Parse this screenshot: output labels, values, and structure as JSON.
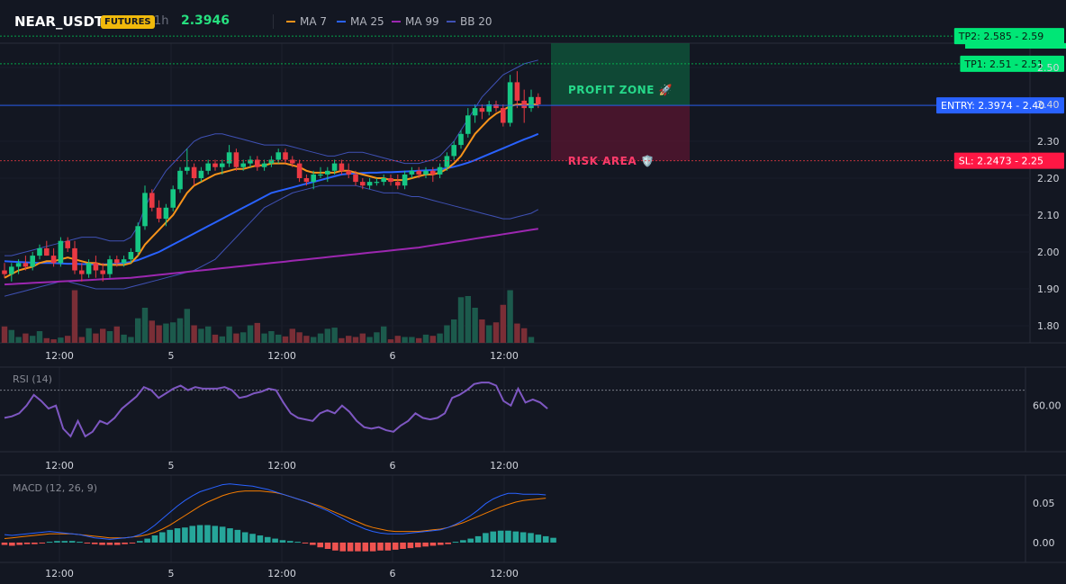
{
  "header": {
    "symbol": "NEAR_USDT",
    "badge": "FUTURES",
    "interval": "1h",
    "price": "2.3946",
    "legend": [
      {
        "label": "MA 7",
        "color": "#f7931a"
      },
      {
        "label": "MA 25",
        "color": "#2962ff"
      },
      {
        "label": "MA 99",
        "color": "#9c27b0"
      },
      {
        "label": "BB 20",
        "color": "#3f51b5"
      }
    ]
  },
  "colors": {
    "up": "#16c784",
    "down": "#ea3943",
    "vol_up": "#1c5a4c",
    "vol_down": "#7a2e36",
    "rsi": "#7e57c2",
    "macd": "#2962ff",
    "signal": "#f57c00",
    "hist_up": "#26a69a",
    "hist_down": "#ef5350"
  },
  "chart_data": [
    {
      "type": "candlestick",
      "title": "NEAR_USDT 1h",
      "x_ticks": [
        "12:00",
        "5",
        "12:00",
        "6",
        "12:00"
      ],
      "y_ticks": [
        "1.80",
        "1.90",
        "2.00",
        "2.10",
        "2.20",
        "2.30",
        "2.40",
        "2.50"
      ],
      "ylim": [
        1.75,
        2.62
      ],
      "candles": [
        [
          1.95,
          1.97,
          1.93,
          1.94
        ],
        [
          1.94,
          1.97,
          1.92,
          1.96
        ],
        [
          1.96,
          1.98,
          1.94,
          1.97
        ],
        [
          1.97,
          1.99,
          1.95,
          1.96
        ],
        [
          1.96,
          2.0,
          1.95,
          1.99
        ],
        [
          1.99,
          2.02,
          1.98,
          2.01
        ],
        [
          2.01,
          2.03,
          1.99,
          1.99
        ],
        [
          1.99,
          2.01,
          1.96,
          1.97
        ],
        [
          1.97,
          2.04,
          1.96,
          2.03
        ],
        [
          2.03,
          2.04,
          2.0,
          2.01
        ],
        [
          2.01,
          2.03,
          1.94,
          1.95
        ],
        [
          1.95,
          1.97,
          1.92,
          1.94
        ],
        [
          1.94,
          1.98,
          1.93,
          1.97
        ],
        [
          1.97,
          1.99,
          1.93,
          1.95
        ],
        [
          1.95,
          1.97,
          1.92,
          1.94
        ],
        [
          1.94,
          1.99,
          1.93,
          1.98
        ],
        [
          1.98,
          1.99,
          1.96,
          1.97
        ],
        [
          1.97,
          1.99,
          1.96,
          1.98
        ],
        [
          1.98,
          2.01,
          1.97,
          2.0
        ],
        [
          2.0,
          2.08,
          1.99,
          2.07
        ],
        [
          2.07,
          2.18,
          2.06,
          2.16
        ],
        [
          2.16,
          2.17,
          2.11,
          2.12
        ],
        [
          2.12,
          2.14,
          2.08,
          2.09
        ],
        [
          2.09,
          2.13,
          2.07,
          2.12
        ],
        [
          2.12,
          2.18,
          2.11,
          2.17
        ],
        [
          2.17,
          2.23,
          2.16,
          2.22
        ],
        [
          2.22,
          2.28,
          2.21,
          2.23
        ],
        [
          2.23,
          2.24,
          2.18,
          2.2
        ],
        [
          2.2,
          2.23,
          2.19,
          2.22
        ],
        [
          2.22,
          2.25,
          2.21,
          2.24
        ],
        [
          2.24,
          2.25,
          2.22,
          2.23
        ],
        [
          2.23,
          2.25,
          2.21,
          2.24
        ],
        [
          2.24,
          2.29,
          2.23,
          2.27
        ],
        [
          2.27,
          2.28,
          2.22,
          2.23
        ],
        [
          2.23,
          2.25,
          2.22,
          2.24
        ],
        [
          2.24,
          2.26,
          2.23,
          2.25
        ],
        [
          2.25,
          2.26,
          2.22,
          2.23
        ],
        [
          2.23,
          2.25,
          2.22,
          2.24
        ],
        [
          2.24,
          2.26,
          2.23,
          2.25
        ],
        [
          2.25,
          2.28,
          2.24,
          2.27
        ],
        [
          2.27,
          2.28,
          2.24,
          2.25
        ],
        [
          2.25,
          2.26,
          2.23,
          2.24
        ],
        [
          2.24,
          2.25,
          2.19,
          2.2
        ],
        [
          2.2,
          2.21,
          2.18,
          2.19
        ],
        [
          2.19,
          2.22,
          2.17,
          2.21
        ],
        [
          2.21,
          2.23,
          2.2,
          2.21
        ],
        [
          2.21,
          2.23,
          2.19,
          2.22
        ],
        [
          2.22,
          2.25,
          2.21,
          2.24
        ],
        [
          2.24,
          2.25,
          2.21,
          2.22
        ],
        [
          2.22,
          2.24,
          2.2,
          2.21
        ],
        [
          2.21,
          2.22,
          2.18,
          2.19
        ],
        [
          2.19,
          2.2,
          2.17,
          2.18
        ],
        [
          2.18,
          2.2,
          2.17,
          2.19
        ],
        [
          2.19,
          2.2,
          2.18,
          2.19
        ],
        [
          2.19,
          2.21,
          2.18,
          2.2
        ],
        [
          2.2,
          2.21,
          2.18,
          2.19
        ],
        [
          2.19,
          2.21,
          2.17,
          2.18
        ],
        [
          2.18,
          2.22,
          2.17,
          2.21
        ],
        [
          2.21,
          2.23,
          2.2,
          2.22
        ],
        [
          2.22,
          2.23,
          2.2,
          2.21
        ],
        [
          2.21,
          2.23,
          2.2,
          2.22
        ],
        [
          2.22,
          2.23,
          2.19,
          2.21
        ],
        [
          2.21,
          2.24,
          2.2,
          2.23
        ],
        [
          2.23,
          2.27,
          2.22,
          2.26
        ],
        [
          2.26,
          2.3,
          2.25,
          2.29
        ],
        [
          2.29,
          2.33,
          2.28,
          2.32
        ],
        [
          2.32,
          2.39,
          2.31,
          2.37
        ],
        [
          2.37,
          2.4,
          2.35,
          2.39
        ],
        [
          2.39,
          2.4,
          2.36,
          2.38
        ],
        [
          2.38,
          2.41,
          2.37,
          2.4
        ],
        [
          2.4,
          2.41,
          2.38,
          2.39
        ],
        [
          2.39,
          2.4,
          2.34,
          2.35
        ],
        [
          2.35,
          2.48,
          2.34,
          2.46
        ],
        [
          2.46,
          2.49,
          2.39,
          2.41
        ],
        [
          2.41,
          2.44,
          2.35,
          2.39
        ],
        [
          2.39,
          2.44,
          2.38,
          2.42
        ],
        [
          2.42,
          2.43,
          2.39,
          2.4
        ]
      ],
      "volume": [
        28,
        22,
        10,
        16,
        12,
        20,
        8,
        6,
        9,
        12,
        90,
        10,
        25,
        16,
        24,
        20,
        28,
        14,
        10,
        42,
        60,
        38,
        30,
        33,
        35,
        42,
        58,
        30,
        24,
        28,
        14,
        11,
        28,
        16,
        18,
        30,
        34,
        16,
        20,
        14,
        11,
        24,
        18,
        12,
        10,
        16,
        24,
        26,
        8,
        12,
        10,
        16,
        10,
        18,
        28,
        6,
        12,
        10,
        10,
        8,
        14,
        12,
        16,
        30,
        40,
        78,
        80,
        60,
        40,
        30,
        35,
        65,
        90,
        33,
        25,
        10
      ],
      "ma7": [
        1.93,
        1.94,
        1.95,
        1.955,
        1.96,
        1.97,
        1.975,
        1.975,
        1.98,
        1.985,
        1.98,
        1.975,
        1.97,
        1.97,
        1.965,
        1.965,
        1.965,
        1.965,
        1.97,
        1.99,
        2.02,
        2.04,
        2.06,
        2.08,
        2.1,
        2.13,
        2.16,
        2.18,
        2.19,
        2.2,
        2.21,
        2.215,
        2.22,
        2.225,
        2.225,
        2.23,
        2.235,
        2.235,
        2.24,
        2.24,
        2.24,
        2.235,
        2.23,
        2.22,
        2.215,
        2.215,
        2.215,
        2.215,
        2.22,
        2.22,
        2.215,
        2.21,
        2.205,
        2.2,
        2.2,
        2.195,
        2.195,
        2.195,
        2.2,
        2.205,
        2.21,
        2.21,
        2.215,
        2.225,
        2.24,
        2.26,
        2.29,
        2.32,
        2.34,
        2.36,
        2.375,
        2.385,
        2.395,
        2.4,
        2.4,
        2.4,
        2.4
      ],
      "ma25": [
        1.975,
        1.974,
        1.973,
        1.972,
        1.971,
        1.97,
        1.97,
        1.97,
        1.969,
        1.968,
        1.968,
        1.967,
        1.967,
        1.966,
        1.966,
        1.967,
        1.968,
        1.97,
        1.973,
        1.978,
        1.985,
        1.993,
        2.0,
        2.01,
        2.02,
        2.03,
        2.04,
        2.05,
        2.06,
        2.07,
        2.08,
        2.09,
        2.1,
        2.11,
        2.12,
        2.13,
        2.14,
        2.15,
        2.16,
        2.165,
        2.17,
        2.175,
        2.18,
        2.185,
        2.19,
        2.195,
        2.2,
        2.205,
        2.21,
        2.212,
        2.213,
        2.214,
        2.215,
        2.215,
        2.216,
        2.216,
        2.217,
        2.218,
        2.219,
        2.22,
        2.221,
        2.222,
        2.224,
        2.227,
        2.231,
        2.236,
        2.242,
        2.249,
        2.257,
        2.265,
        2.273,
        2.281,
        2.289,
        2.297,
        2.305,
        2.312,
        2.32
      ],
      "ma99": [
        1.912,
        1.913,
        1.914,
        1.915,
        1.916,
        1.917,
        1.918,
        1.919,
        1.92,
        1.921,
        1.922,
        1.923,
        1.924,
        1.925,
        1.926,
        1.927,
        1.928,
        1.929,
        1.93,
        1.932,
        1.934,
        1.936,
        1.938,
        1.94,
        1.942,
        1.944,
        1.946,
        1.948,
        1.95,
        1.952,
        1.954,
        1.956,
        1.958,
        1.96,
        1.962,
        1.964,
        1.966,
        1.968,
        1.97,
        1.972,
        1.974,
        1.976,
        1.978,
        1.98,
        1.982,
        1.984,
        1.986,
        1.988,
        1.99,
        1.992,
        1.994,
        1.996,
        1.998,
        2.0,
        2.002,
        2.004,
        2.006,
        2.008,
        2.01,
        2.012,
        2.015,
        2.018,
        2.021,
        2.024,
        2.027,
        2.03,
        2.033,
        2.036,
        2.039,
        2.042,
        2.045,
        2.048,
        2.051,
        2.054,
        2.057,
        2.06,
        2.063
      ],
      "bb_upper": [
        1.99,
        1.99,
        1.995,
        2.0,
        2.005,
        2.01,
        2.015,
        2.02,
        2.025,
        2.03,
        2.035,
        2.04,
        2.04,
        2.04,
        2.035,
        2.03,
        2.03,
        2.03,
        2.04,
        2.07,
        2.12,
        2.16,
        2.19,
        2.22,
        2.24,
        2.26,
        2.28,
        2.3,
        2.31,
        2.315,
        2.32,
        2.32,
        2.315,
        2.31,
        2.305,
        2.3,
        2.295,
        2.29,
        2.29,
        2.29,
        2.29,
        2.285,
        2.28,
        2.275,
        2.27,
        2.265,
        2.26,
        2.26,
        2.265,
        2.27,
        2.27,
        2.27,
        2.265,
        2.26,
        2.255,
        2.25,
        2.245,
        2.24,
        2.24,
        2.24,
        2.245,
        2.25,
        2.26,
        2.28,
        2.3,
        2.33,
        2.36,
        2.39,
        2.42,
        2.44,
        2.46,
        2.48,
        2.49,
        2.5,
        2.51,
        2.515,
        2.52
      ],
      "bb_lower": [
        1.88,
        1.885,
        1.89,
        1.895,
        1.9,
        1.905,
        1.91,
        1.915,
        1.92,
        1.92,
        1.915,
        1.91,
        1.905,
        1.9,
        1.9,
        1.9,
        1.9,
        1.9,
        1.905,
        1.91,
        1.915,
        1.92,
        1.925,
        1.93,
        1.935,
        1.94,
        1.945,
        1.95,
        1.96,
        1.97,
        1.98,
        2.0,
        2.02,
        2.04,
        2.06,
        2.08,
        2.1,
        2.12,
        2.13,
        2.14,
        2.15,
        2.16,
        2.165,
        2.17,
        2.175,
        2.18,
        2.18,
        2.18,
        2.18,
        2.18,
        2.18,
        2.175,
        2.17,
        2.165,
        2.16,
        2.16,
        2.16,
        2.155,
        2.15,
        2.15,
        2.145,
        2.14,
        2.135,
        2.13,
        2.125,
        2.12,
        2.115,
        2.11,
        2.105,
        2.1,
        2.095,
        2.09,
        2.09,
        2.095,
        2.1,
        2.105,
        2.115
      ],
      "levels": [
        {
          "label": "TP2: 2.585 - 2.59",
          "value": 2.585,
          "color": "#00c853",
          "style": "dotted"
        },
        {
          "label": "TP1: 2.51 - 2.51",
          "value": 2.51,
          "color": "#00c853",
          "style": "dotted"
        },
        {
          "label": "ENTRY: 2.3974 - 2.40",
          "value": 2.3974,
          "color": "#2962ff",
          "style": "solid"
        },
        {
          "label": "SL: 2.2473 - 2.25",
          "value": 2.2473,
          "color": "#ea3943",
          "style": "dotted"
        }
      ],
      "zones": {
        "profit_label": "PROFIT ZONE 🚀",
        "risk_label": "RISK AREA 🛡️",
        "profit_top": 2.62,
        "entry": 2.3974,
        "sl": 2.2473
      }
    },
    {
      "type": "line",
      "title": "RSI (14)",
      "y_ticks": [
        "60.00"
      ],
      "ylim": [
        30,
        85
      ],
      "overbought": 70,
      "values": [
        52,
        53,
        55,
        60,
        67,
        63,
        58,
        60,
        45,
        40,
        50,
        40,
        43,
        50,
        48,
        52,
        58,
        62,
        66,
        72,
        70,
        65,
        68,
        71,
        73,
        70,
        72,
        71,
        71,
        71,
        72,
        70,
        65,
        66,
        68,
        69,
        71,
        70,
        62,
        55,
        52,
        51,
        50,
        55,
        57,
        55,
        60,
        56,
        50,
        46,
        45,
        46,
        44,
        43,
        47,
        50,
        55,
        52,
        51,
        52,
        55,
        65,
        67,
        70,
        74,
        75,
        75,
        73,
        63,
        60,
        71,
        62,
        64,
        62,
        58
      ]
    },
    {
      "type": "line",
      "title": "MACD (12, 26, 9)",
      "y_ticks": [
        "0.05",
        "0.00"
      ],
      "ylim": [
        -0.025,
        0.085
      ],
      "macd": [
        0.01,
        0.009,
        0.01,
        0.011,
        0.012,
        0.013,
        0.014,
        0.013,
        0.012,
        0.011,
        0.01,
        0.008,
        0.006,
        0.005,
        0.004,
        0.005,
        0.006,
        0.007,
        0.01,
        0.015,
        0.022,
        0.03,
        0.038,
        0.046,
        0.053,
        0.059,
        0.064,
        0.067,
        0.07,
        0.073,
        0.074,
        0.073,
        0.072,
        0.071,
        0.069,
        0.067,
        0.064,
        0.061,
        0.058,
        0.055,
        0.052,
        0.048,
        0.044,
        0.04,
        0.035,
        0.03,
        0.025,
        0.021,
        0.017,
        0.014,
        0.012,
        0.011,
        0.011,
        0.011,
        0.012,
        0.013,
        0.014,
        0.015,
        0.016,
        0.019,
        0.023,
        0.028,
        0.034,
        0.041,
        0.049,
        0.055,
        0.059,
        0.062,
        0.062,
        0.061,
        0.061,
        0.061,
        0.06
      ],
      "signal": [
        0.005,
        0.006,
        0.007,
        0.008,
        0.009,
        0.01,
        0.011,
        0.011,
        0.011,
        0.011,
        0.01,
        0.009,
        0.008,
        0.007,
        0.006,
        0.006,
        0.006,
        0.007,
        0.008,
        0.01,
        0.013,
        0.017,
        0.022,
        0.028,
        0.034,
        0.04,
        0.046,
        0.051,
        0.055,
        0.059,
        0.062,
        0.064,
        0.065,
        0.065,
        0.065,
        0.064,
        0.063,
        0.061,
        0.058,
        0.055,
        0.052,
        0.049,
        0.046,
        0.042,
        0.038,
        0.034,
        0.03,
        0.026,
        0.022,
        0.019,
        0.017,
        0.015,
        0.014,
        0.014,
        0.014,
        0.014,
        0.015,
        0.016,
        0.017,
        0.019,
        0.022,
        0.025,
        0.029,
        0.033,
        0.037,
        0.041,
        0.045,
        0.048,
        0.051,
        0.053,
        0.054,
        0.055,
        0.056
      ],
      "hist": [
        -0.003,
        -0.004,
        -0.003,
        -0.002,
        -0.002,
        -0.001,
        0.001,
        0.002,
        0.002,
        0.002,
        0.001,
        -0.001,
        -0.002,
        -0.003,
        -0.003,
        -0.003,
        -0.002,
        -0.001,
        0.002,
        0.005,
        0.009,
        0.013,
        0.016,
        0.018,
        0.019,
        0.021,
        0.022,
        0.022,
        0.021,
        0.02,
        0.018,
        0.016,
        0.013,
        0.011,
        0.009,
        0.007,
        0.005,
        0.003,
        0.002,
        0.001,
        -0.001,
        -0.003,
        -0.006,
        -0.008,
        -0.01,
        -0.011,
        -0.011,
        -0.011,
        -0.011,
        -0.011,
        -0.01,
        -0.01,
        -0.009,
        -0.008,
        -0.007,
        -0.006,
        -0.005,
        -0.004,
        -0.003,
        -0.002,
        0.001,
        0.003,
        0.005,
        0.008,
        0.012,
        0.014,
        0.015,
        0.015,
        0.014,
        0.013,
        0.012,
        0.01,
        0.008,
        0.006
      ]
    }
  ]
}
